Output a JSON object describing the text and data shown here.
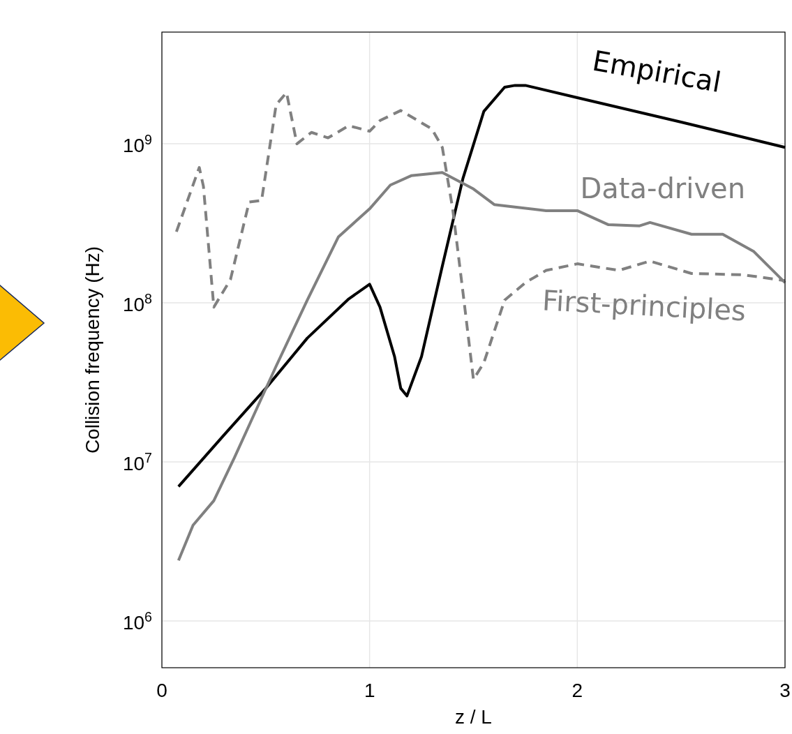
{
  "chart_data": {
    "type": "line",
    "xlabel": "z / L",
    "ylabel": "Collision frequency (Hz)",
    "log": "y",
    "grid": true,
    "xlim": [
      0,
      3
    ],
    "xticks": [
      0,
      1,
      2,
      3
    ],
    "ylim": [
      508000,
      5040000000
    ],
    "yticks": [
      {
        "value": 1000000,
        "label": "10$^{6}$"
      },
      {
        "value": 10000000,
        "label": "10$^{7}$"
      },
      {
        "value": 100000000,
        "label": "10$^{8}$"
      },
      {
        "value": 1000000000,
        "label": "10$^{9}$"
      }
    ],
    "series": [
      {
        "name": "Empirical",
        "color": "#000000",
        "line_style": "solid",
        "x": [
          0.08,
          0.3,
          0.5,
          0.7,
          0.9,
          1.0,
          1.05,
          1.12,
          1.15,
          1.18,
          1.25,
          1.35,
          1.45,
          1.55,
          1.65,
          1.7,
          1.75,
          2.0,
          2.5,
          3.0
        ],
        "values": [
          7000000,
          14800000,
          29000000,
          60000000,
          106000000,
          131000000,
          94000000,
          46000000,
          29000000,
          26000000,
          46000000,
          170000000,
          610000000,
          1600000000,
          2270000000,
          2330000000,
          2330000000,
          1950000000,
          1370000000,
          950000000
        ]
      },
      {
        "name": "Data-driven",
        "color": "#808080",
        "line_style": "solid",
        "x": [
          0.08,
          0.15,
          0.25,
          0.35,
          0.45,
          0.55,
          0.7,
          0.85,
          1.0,
          1.1,
          1.2,
          1.35,
          1.5,
          1.6,
          1.7,
          1.85,
          2.0,
          2.15,
          2.3,
          2.35,
          2.55,
          2.7,
          2.85,
          3.0
        ],
        "values": [
          2400000,
          4000000,
          5700000,
          10700000,
          20700000,
          40000000,
          104000000,
          260000000,
          390000000,
          550000000,
          630000000,
          660000000,
          520000000,
          415000000,
          400000000,
          380000000,
          380000000,
          310000000,
          305000000,
          320000000,
          270000000,
          270000000,
          210000000,
          134000000
        ]
      },
      {
        "name": "First-principles",
        "color": "#808080",
        "line_style": "dashed",
        "x": [
          0.07,
          0.18,
          0.2,
          0.25,
          0.33,
          0.42,
          0.48,
          0.55,
          0.6,
          0.65,
          0.72,
          0.8,
          0.9,
          1.0,
          1.05,
          1.15,
          1.3,
          1.35,
          1.4,
          1.45,
          1.5,
          1.55,
          1.65,
          1.75,
          1.85,
          2.0,
          2.2,
          2.35,
          2.55,
          2.8,
          3.0
        ],
        "values": [
          280000000,
          710000000,
          540000000,
          94000000,
          140000000,
          430000000,
          440000000,
          1760000000,
          2100000000,
          1000000000,
          1180000000,
          1090000000,
          1300000000,
          1200000000,
          1400000000,
          1620000000,
          1240000000,
          950000000,
          390000000,
          115000000,
          33000000,
          42000000,
          104000000,
          134000000,
          160000000,
          176000000,
          160000000,
          183000000,
          153000000,
          150000000,
          138000000
        ]
      }
    ]
  }
}
